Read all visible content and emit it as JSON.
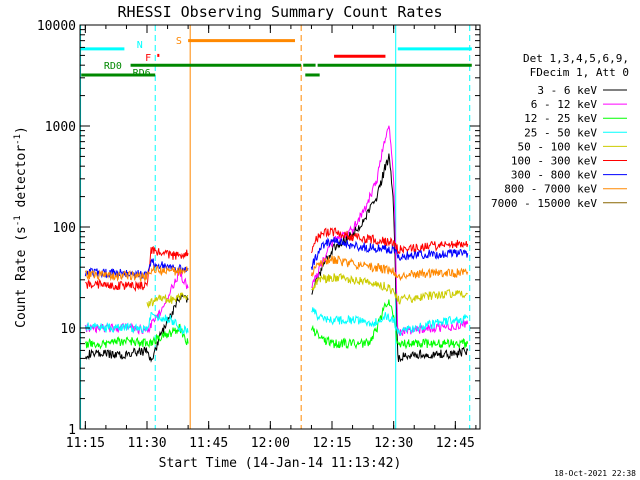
{
  "chart_data": {
    "type": "line",
    "title": "RHESSI Observing Summary Count Rates",
    "xlabel": "Start Time (14-Jan-14 11:13:42)",
    "ylabel_main": "Count Rate (s",
    "ylabel_sup1": "-1",
    "ylabel_mid": " detector",
    "ylabel_sup2": "-1",
    "ylabel_end": ")",
    "y_scale": "log",
    "ylim": [
      1,
      10000
    ],
    "xlim": [
      "11:13:42",
      "12:51:00"
    ],
    "x_ticks": [
      {
        "t": "11:15",
        "label": "11:15"
      },
      {
        "t": "11:30",
        "label": "11:30"
      },
      {
        "t": "11:45",
        "label": "11:45"
      },
      {
        "t": "12:00",
        "label": "12:00"
      },
      {
        "t": "12:15",
        "label": "12:15"
      },
      {
        "t": "12:30",
        "label": "12:30"
      },
      {
        "t": "12:45",
        "label": "12:45"
      }
    ],
    "y_ticks": [
      {
        "v": 1,
        "label": "1"
      },
      {
        "v": 10,
        "label": "10"
      },
      {
        "v": 100,
        "label": "100"
      },
      {
        "v": 1000,
        "label": "1000"
      },
      {
        "v": 10000,
        "label": "10000"
      }
    ],
    "legend_position": "right",
    "legend_header": [
      "Det 1,3,4,5,6,9,",
      "FDecim 1, Att 0"
    ],
    "series": [
      {
        "name": "3 - 6 keV",
        "color": "#000000",
        "segments": [
          [
            [
              "11:15",
              5.5
            ],
            [
              "11:20",
              5.5
            ],
            [
              "11:25",
              5.5
            ],
            [
              "11:30",
              6
            ],
            [
              "11:31",
              4.5
            ],
            [
              "11:33",
              8
            ],
            [
              "11:36",
              14
            ],
            [
              "11:38",
              20
            ],
            [
              "11:40",
              19
            ]
          ],
          [
            [
              "12:10",
              22
            ],
            [
              "12:12",
              35
            ],
            [
              "12:15",
              60
            ],
            [
              "12:20",
              85
            ],
            [
              "12:23",
              120
            ],
            [
              "12:26",
              200
            ],
            [
              "12:28",
              400
            ],
            [
              "12:29",
              500
            ],
            [
              "12:30",
              150
            ],
            [
              "12:31",
              5
            ],
            [
              "12:35",
              5.5
            ],
            [
              "12:40",
              5.5
            ],
            [
              "12:45",
              5.5
            ],
            [
              "12:48",
              6
            ]
          ]
        ]
      },
      {
        "name": "6 - 12 keV",
        "color": "#ff00ff",
        "segments": [
          [
            [
              "11:15",
              10
            ],
            [
              "11:20",
              10
            ],
            [
              "11:25",
              10
            ],
            [
              "11:30",
              9.5
            ],
            [
              "11:33",
              14
            ],
            [
              "11:36",
              25
            ],
            [
              "11:38",
              35
            ],
            [
              "11:40",
              25
            ]
          ],
          [
            [
              "12:10",
              25
            ],
            [
              "12:12",
              40
            ],
            [
              "12:15",
              70
            ],
            [
              "12:20",
              95
            ],
            [
              "12:23",
              150
            ],
            [
              "12:26",
              300
            ],
            [
              "12:28",
              800
            ],
            [
              "12:29",
              1000
            ],
            [
              "12:30",
              300
            ],
            [
              "12:31",
              9
            ],
            [
              "12:35",
              9.5
            ],
            [
              "12:40",
              10
            ],
            [
              "12:45",
              10.5
            ],
            [
              "12:48",
              11
            ]
          ]
        ]
      },
      {
        "name": "12 - 25 keV",
        "color": "#00ff00",
        "segments": [
          [
            [
              "11:15",
              7
            ],
            [
              "11:20",
              7
            ],
            [
              "11:25",
              7.5
            ],
            [
              "11:30",
              7
            ],
            [
              "11:33",
              8
            ],
            [
              "11:36",
              9
            ],
            [
              "11:38",
              10
            ],
            [
              "11:40",
              7
            ]
          ],
          [
            [
              "12:10",
              10
            ],
            [
              "12:12",
              8
            ],
            [
              "12:15",
              7
            ],
            [
              "12:20",
              7
            ],
            [
              "12:24",
              7
            ],
            [
              "12:26",
              10
            ],
            [
              "12:28",
              17
            ],
            [
              "12:29",
              18
            ],
            [
              "12:30",
              12
            ],
            [
              "12:31",
              7
            ],
            [
              "12:35",
              7
            ],
            [
              "12:40",
              7
            ],
            [
              "12:45",
              7
            ],
            [
              "12:48",
              7
            ]
          ]
        ]
      },
      {
        "name": "25 - 50 keV",
        "color": "#00ffff",
        "segments": [
          [
            [
              "11:15",
              10.5
            ],
            [
              "11:20",
              10
            ],
            [
              "11:25",
              10
            ],
            [
              "11:30",
              10
            ],
            [
              "11:31",
              13
            ],
            [
              "11:33",
              13
            ],
            [
              "11:36",
              12
            ],
            [
              "11:38",
              10
            ],
            [
              "11:40",
              9
            ]
          ],
          [
            [
              "12:10",
              15
            ],
            [
              "12:12",
              13
            ],
            [
              "12:15",
              12
            ],
            [
              "12:20",
              12
            ],
            [
              "12:25",
              11
            ],
            [
              "12:28",
              13
            ],
            [
              "12:30",
              12
            ],
            [
              "12:31",
              9
            ],
            [
              "12:35",
              10
            ],
            [
              "12:40",
              11
            ],
            [
              "12:45",
              12
            ],
            [
              "12:48",
              12.5
            ]
          ]
        ]
      },
      {
        "name": "50 - 100 keV",
        "color": "#cccc00",
        "segments": [
          [
            [
              "11:30",
              17
            ],
            [
              "11:33",
              20
            ],
            [
              "11:36",
              19
            ],
            [
              "11:38",
              20
            ],
            [
              "11:40",
              21
            ]
          ],
          [
            [
              "12:10",
              25
            ],
            [
              "12:12",
              30
            ],
            [
              "12:15",
              32
            ],
            [
              "12:20",
              30
            ],
            [
              "12:25",
              27
            ],
            [
              "12:28",
              26
            ],
            [
              "12:30",
              23
            ],
            [
              "12:31",
              19
            ],
            [
              "12:35",
              20
            ],
            [
              "12:40",
              21
            ],
            [
              "12:45",
              22
            ],
            [
              "12:48",
              22
            ]
          ]
        ]
      },
      {
        "name": "100 - 300 keV",
        "color": "#ff0000",
        "segments": [
          [
            [
              "11:15",
              27
            ],
            [
              "11:20",
              27
            ],
            [
              "11:25",
              26
            ],
            [
              "11:30",
              26
            ],
            [
              "11:31",
              60
            ],
            [
              "11:33",
              56
            ],
            [
              "11:36",
              52
            ],
            [
              "11:38",
              52
            ],
            [
              "11:40",
              55
            ]
          ],
          [
            [
              "12:10",
              60
            ],
            [
              "12:12",
              85
            ],
            [
              "12:15",
              90
            ],
            [
              "12:20",
              80
            ],
            [
              "12:25",
              75
            ],
            [
              "12:28",
              72
            ],
            [
              "12:30",
              70
            ],
            [
              "12:31",
              60
            ],
            [
              "12:35",
              62
            ],
            [
              "12:40",
              65
            ],
            [
              "12:45",
              67
            ],
            [
              "12:48",
              68
            ]
          ]
        ]
      },
      {
        "name": "300 - 800 keV",
        "color": "#0000ff",
        "segments": [
          [
            [
              "11:15",
              36
            ],
            [
              "11:20",
              35
            ],
            [
              "11:25",
              35
            ],
            [
              "11:30",
              33
            ],
            [
              "11:31",
              45
            ],
            [
              "11:33",
              42
            ],
            [
              "11:36",
              40
            ],
            [
              "11:38",
              39
            ],
            [
              "11:40",
              39
            ]
          ],
          [
            [
              "12:10",
              40
            ],
            [
              "12:12",
              60
            ],
            [
              "12:15",
              75
            ],
            [
              "12:20",
              65
            ],
            [
              "12:25",
              62
            ],
            [
              "12:28",
              60
            ],
            [
              "12:30",
              58
            ],
            [
              "12:31",
              52
            ],
            [
              "12:35",
              53
            ],
            [
              "12:40",
              54
            ],
            [
              "12:45",
              55
            ],
            [
              "12:48",
              55
            ]
          ]
        ]
      },
      {
        "name": "800 - 7000 keV",
        "color": "#ff8800",
        "segments": [
          [
            [
              "11:15",
              34
            ],
            [
              "11:20",
              33
            ],
            [
              "11:25",
              33
            ],
            [
              "11:30",
              32
            ],
            [
              "11:31",
              38
            ],
            [
              "11:33",
              37
            ],
            [
              "11:36",
              36
            ],
            [
              "11:38",
              36
            ],
            [
              "11:40",
              37
            ]
          ],
          [
            [
              "12:10",
              35
            ],
            [
              "12:12",
              45
            ],
            [
              "12:15",
              48
            ],
            [
              "12:20",
              43
            ],
            [
              "12:25",
              40
            ],
            [
              "12:28",
              38
            ],
            [
              "12:30",
              37
            ],
            [
              "12:31",
              33
            ],
            [
              "12:35",
              34
            ],
            [
              "12:40",
              35
            ],
            [
              "12:45",
              35
            ],
            [
              "12:48",
              36
            ]
          ]
        ]
      },
      {
        "name": "7000 - 15000 keV",
        "color": "#886600",
        "segments": []
      }
    ],
    "flag_bars": [
      {
        "label": "",
        "color": "#00ffff",
        "y": 5800,
        "spans": [
          [
            "11:13:42",
            "11:24:30"
          ],
          [
            "12:31:00",
            "12:49:00"
          ]
        ]
      },
      {
        "label": "N",
        "color": "#00ffff",
        "y": 5800,
        "spans": []
      },
      {
        "label": "F",
        "color": "#ff0000",
        "y": 5000,
        "spans": [
          [
            "11:32:30",
            "11:33:00"
          ]
        ]
      },
      {
        "label": "",
        "color": "#ff0000",
        "y": 4900,
        "spans": [
          [
            "12:15:30",
            "12:28:00"
          ]
        ]
      },
      {
        "label": "S",
        "color": "#ff8800",
        "y": 7000,
        "spans": [
          [
            "11:40:00",
            "12:06:00"
          ]
        ]
      },
      {
        "label": "RD0",
        "color": "#008800",
        "y": 4000,
        "spans": [
          [
            "11:26:00",
            "12:07:30"
          ],
          [
            "12:08:00",
            "12:11:00"
          ],
          [
            "12:11:30",
            "12:49:00"
          ]
        ]
      },
      {
        "label": "RD6",
        "color": "#008800",
        "y": 3200,
        "spans": [
          [
            "11:14:00",
            "11:32:00"
          ],
          [
            "12:08:30",
            "12:12:00"
          ]
        ]
      }
    ],
    "vlines": [
      {
        "t": "11:13:50",
        "color": "#00ffff",
        "style": "solid"
      },
      {
        "t": "11:32:00",
        "color": "#00ffff",
        "style": "dashed"
      },
      {
        "t": "11:40:30",
        "color": "#ff8800",
        "style": "solid"
      },
      {
        "t": "12:07:30",
        "color": "#ff8800",
        "style": "dashed"
      },
      {
        "t": "12:30:30",
        "color": "#00ffff",
        "style": "solid"
      },
      {
        "t": "12:48:30",
        "color": "#00ffff",
        "style": "dashed"
      }
    ],
    "footer_date": "18-Oct-2021 22:38"
  }
}
